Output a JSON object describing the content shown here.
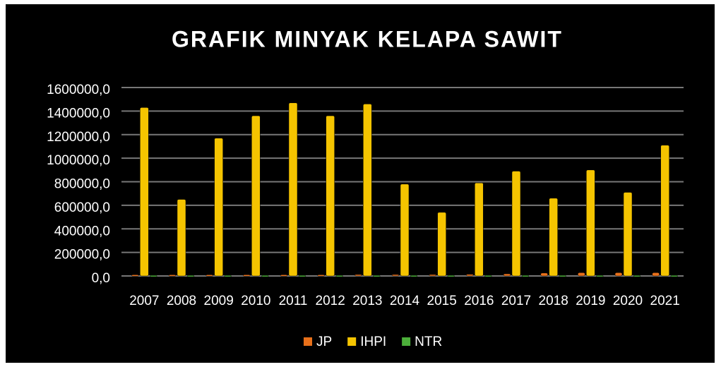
{
  "chart_data": {
    "type": "bar",
    "title": "GRAFIK MINYAK KELAPA SAWIT",
    "categories": [
      "2007",
      "2008",
      "2009",
      "2010",
      "2011",
      "2012",
      "2013",
      "2014",
      "2015",
      "2016",
      "2017",
      "2018",
      "2019",
      "2020",
      "2021"
    ],
    "series": [
      {
        "name": "JP",
        "color": "#e8701a",
        "values": [
          10000,
          10000,
          10000,
          10000,
          10000,
          10000,
          12000,
          12000,
          12000,
          14000,
          18000,
          25000,
          28000,
          28000,
          28000
        ]
      },
      {
        "name": "IHPI",
        "color": "#f5c400",
        "values": [
          1430000,
          650000,
          1170000,
          1360000,
          1470000,
          1360000,
          1460000,
          780000,
          540000,
          790000,
          890000,
          660000,
          900000,
          710000,
          1110000
        ]
      },
      {
        "name": "NTR",
        "color": "#4caf3a",
        "values": [
          5000,
          5000,
          5000,
          5000,
          5000,
          5000,
          5000,
          5000,
          5000,
          5000,
          5000,
          5000,
          5000,
          5000,
          5000
        ]
      }
    ],
    "ylim": [
      0,
      1600000
    ],
    "yticks": [
      {
        "value": 0,
        "label": "0,0"
      },
      {
        "value": 200000,
        "label": "200000,0"
      },
      {
        "value": 400000,
        "label": "400000,0"
      },
      {
        "value": 600000,
        "label": "600000,0"
      },
      {
        "value": 800000,
        "label": "800000,0"
      },
      {
        "value": 1000000,
        "label": "1000000,0"
      },
      {
        "value": 1200000,
        "label": "1200000,0"
      },
      {
        "value": 1400000,
        "label": "1400000,0"
      },
      {
        "value": 1600000,
        "label": "1600000,0"
      }
    ],
    "grid": true,
    "legend": "bottom"
  }
}
